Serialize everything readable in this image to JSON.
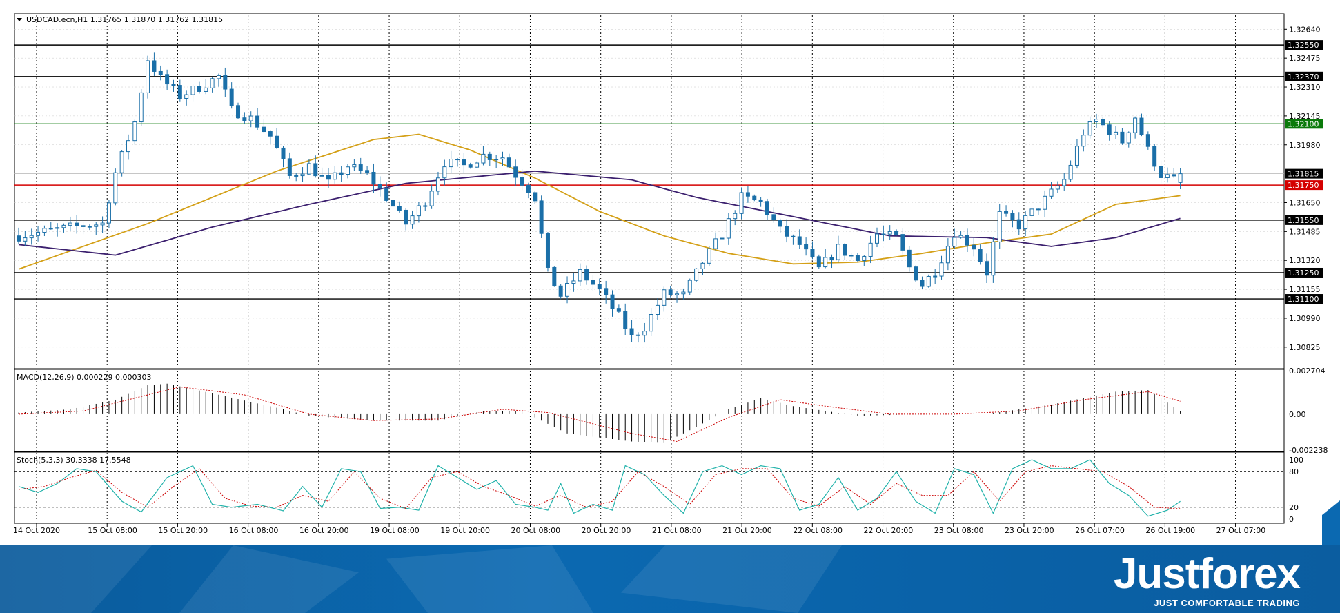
{
  "header": {
    "menu_arrow": "triangle-down-icon",
    "title": "USDCAD.ecn,H1  1.31765 1.31870 1.31762 1.31815"
  },
  "colors": {
    "bull": "#ffffff",
    "bear": "#1a6fa8",
    "candle_outline": "#1a6fa8",
    "ma_fast": "#d4a017",
    "ma_slow": "#3b1f6e",
    "grid": "#000000",
    "support_line": "#000000",
    "green_line": "#0a7a0a",
    "red_line": "#d40000",
    "macd_signal": "#cc0000",
    "stoch_main": "#20b2aa",
    "stoch_signal": "#cc0000"
  },
  "chart_data": [
    {
      "type": "candlestick",
      "symbol": "USDCAD.ecn",
      "timeframe": "H1",
      "ohlc_last": {
        "open": 1.31765,
        "high": 1.3187,
        "low": 1.31762,
        "close": 1.31815
      },
      "ylim": [
        1.3071,
        1.3272
      ],
      "price_ticks": [
        "1.32640",
        "1.32475",
        "1.32310",
        "1.32145",
        "1.31980",
        "1.31650",
        "1.31485",
        "1.31320",
        "1.31155",
        "1.30990",
        "1.30825"
      ],
      "levels": [
        {
          "label": "1.32550",
          "value": 1.3255,
          "color": "#000000"
        },
        {
          "label": "1.32370",
          "value": 1.3237,
          "color": "#000000"
        },
        {
          "label": "1.32100",
          "value": 1.321,
          "color": "#0a7a0a"
        },
        {
          "label": "1.31750",
          "value": 1.3175,
          "color": "#d40000"
        },
        {
          "label": "1.31550",
          "value": 1.3155,
          "color": "#000000"
        },
        {
          "label": "1.31250",
          "value": 1.3125,
          "color": "#000000"
        },
        {
          "label": "1.31100",
          "value": 1.311,
          "color": "#000000"
        }
      ],
      "current_price_label": "1.31815",
      "current_price": 1.31815,
      "x_ticks": [
        "14 Oct 2020",
        "15 Oct 08:00",
        "15 Oct 20:00",
        "16 Oct 08:00",
        "16 Oct 20:00",
        "19 Oct 08:00",
        "19 Oct 20:00",
        "20 Oct 08:00",
        "20 Oct 20:00",
        "21 Oct 08:00",
        "21 Oct 20:00",
        "22 Oct 08:00",
        "22 Oct 20:00",
        "23 Oct 08:00",
        "23 Oct 20:00",
        "26 Oct 07:00",
        "26 Oct 19:00",
        "27 Oct 07:00"
      ],
      "candle_count": 200,
      "close_anchors": [
        [
          0,
          1.3146
        ],
        [
          10,
          1.3152
        ],
        [
          13,
          1.3153
        ],
        [
          15,
          1.3182
        ],
        [
          18,
          1.3211
        ],
        [
          20,
          1.3247
        ],
        [
          22,
          1.3236
        ],
        [
          25,
          1.3226
        ],
        [
          28,
          1.3231
        ],
        [
          31,
          1.3237
        ],
        [
          33,
          1.3218
        ],
        [
          36,
          1.3213
        ],
        [
          39,
          1.3203
        ],
        [
          42,
          1.318
        ],
        [
          45,
          1.3186
        ],
        [
          48,
          1.3176
        ],
        [
          51,
          1.3186
        ],
        [
          54,
          1.3181
        ],
        [
          57,
          1.3168
        ],
        [
          60,
          1.3153
        ],
        [
          63,
          1.3166
        ],
        [
          66,
          1.3188
        ],
        [
          69,
          1.3186
        ],
        [
          72,
          1.3192
        ],
        [
          75,
          1.3191
        ],
        [
          77,
          1.3181
        ],
        [
          79,
          1.3173
        ],
        [
          80,
          1.3168
        ],
        [
          82,
          1.3125
        ],
        [
          84,
          1.3112
        ],
        [
          87,
          1.3125
        ],
        [
          90,
          1.3115
        ],
        [
          93,
          1.31
        ],
        [
          95,
          1.3088
        ],
        [
          97,
          1.3094
        ],
        [
          100,
          1.3113
        ],
        [
          103,
          1.3112
        ],
        [
          106,
          1.3131
        ],
        [
          109,
          1.3147
        ],
        [
          112,
          1.3168
        ],
        [
          115,
          1.3165
        ],
        [
          118,
          1.3149
        ],
        [
          121,
          1.3141
        ],
        [
          124,
          1.3127
        ],
        [
          127,
          1.3139
        ],
        [
          130,
          1.3132
        ],
        [
          133,
          1.3147
        ],
        [
          136,
          1.3145
        ],
        [
          138,
          1.3128
        ],
        [
          140,
          1.3118
        ],
        [
          142,
          1.3126
        ],
        [
          145,
          1.3148
        ],
        [
          148,
          1.314
        ],
        [
          150,
          1.3125
        ],
        [
          152,
          1.3158
        ],
        [
          155,
          1.3152
        ],
        [
          158,
          1.3163
        ],
        [
          162,
          1.3178
        ],
        [
          165,
          1.3205
        ],
        [
          167,
          1.3212
        ],
        [
          169,
          1.3206
        ],
        [
          171,
          1.32
        ],
        [
          173,
          1.3214
        ],
        [
          175,
          1.3195
        ],
        [
          177,
          1.3181
        ],
        [
          179,
          1.3178
        ],
        [
          180,
          1.31815
        ]
      ],
      "ma_fast_anchors": [
        [
          0,
          1.3127
        ],
        [
          20,
          1.3153
        ],
        [
          40,
          1.3183
        ],
        [
          55,
          1.3201
        ],
        [
          62,
          1.3204
        ],
        [
          70,
          1.3195
        ],
        [
          80,
          1.3179
        ],
        [
          90,
          1.316
        ],
        [
          100,
          1.3146
        ],
        [
          110,
          1.3136
        ],
        [
          120,
          1.313
        ],
        [
          130,
          1.3131
        ],
        [
          140,
          1.3136
        ],
        [
          150,
          1.3142
        ],
        [
          160,
          1.3147
        ],
        [
          170,
          1.3164
        ],
        [
          180,
          1.3169
        ]
      ],
      "ma_slow_anchors": [
        [
          0,
          1.3141
        ],
        [
          15,
          1.3135
        ],
        [
          30,
          1.3151
        ],
        [
          45,
          1.3164
        ],
        [
          60,
          1.3176
        ],
        [
          80,
          1.3183
        ],
        [
          95,
          1.3178
        ],
        [
          105,
          1.3168
        ],
        [
          120,
          1.3157
        ],
        [
          135,
          1.3146
        ],
        [
          150,
          1.3145
        ],
        [
          160,
          1.314
        ],
        [
          170,
          1.3145
        ],
        [
          180,
          1.3156
        ]
      ]
    },
    {
      "type": "histogram",
      "indicator": "MACD",
      "title": "MACD(12,26,9) 0.000229 0.000303",
      "ylim": [
        -0.002238,
        0.002704
      ],
      "ticks": [
        "0.002704",
        "0.00",
        "-0.002238"
      ],
      "macd_anchors": [
        [
          0,
          0.0001
        ],
        [
          8,
          0.0003
        ],
        [
          15,
          0.0009
        ],
        [
          20,
          0.0018
        ],
        [
          23,
          0.0019
        ],
        [
          30,
          0.0013
        ],
        [
          40,
          0.0004
        ],
        [
          45,
          -0.0001
        ],
        [
          55,
          -0.0004
        ],
        [
          65,
          -0.0004
        ],
        [
          72,
          0.0002
        ],
        [
          78,
          0.0002
        ],
        [
          85,
          -0.0012
        ],
        [
          95,
          -0.0017
        ],
        [
          100,
          -0.0018
        ],
        [
          105,
          -0.0008
        ],
        [
          110,
          0.0003
        ],
        [
          115,
          0.001
        ],
        [
          120,
          0.0005
        ],
        [
          130,
          -0.0001
        ],
        [
          140,
          0.0
        ],
        [
          150,
          0.0
        ],
        [
          160,
          0.0006
        ],
        [
          170,
          0.0014
        ],
        [
          175,
          0.0015
        ],
        [
          180,
          0.0002
        ]
      ],
      "signal_anchors": [
        [
          0,
          0.0
        ],
        [
          10,
          0.0002
        ],
        [
          20,
          0.0012
        ],
        [
          25,
          0.0017
        ],
        [
          35,
          0.0012
        ],
        [
          45,
          0.0
        ],
        [
          55,
          -0.0004
        ],
        [
          65,
          -0.0003
        ],
        [
          75,
          0.0003
        ],
        [
          82,
          0.0001
        ],
        [
          95,
          -0.0012
        ],
        [
          102,
          -0.0017
        ],
        [
          110,
          -0.0002
        ],
        [
          118,
          0.0009
        ],
        [
          125,
          0.0005
        ],
        [
          135,
          0.0
        ],
        [
          145,
          0.0
        ],
        [
          155,
          0.0002
        ],
        [
          165,
          0.0009
        ],
        [
          175,
          0.0014
        ],
        [
          180,
          0.0008
        ]
      ]
    },
    {
      "type": "line",
      "indicator": "Stochastic",
      "title": "Stoch(5,3,3) 30.3338 17.5548",
      "ylim": [
        0,
        100
      ],
      "ticks": [
        "100",
        "80",
        "20",
        "0"
      ],
      "levels": [
        80,
        20
      ],
      "k_anchors": [
        [
          0,
          55
        ],
        [
          3,
          45
        ],
        [
          6,
          60
        ],
        [
          9,
          85
        ],
        [
          12,
          80
        ],
        [
          16,
          30
        ],
        [
          19,
          12
        ],
        [
          23,
          70
        ],
        [
          27,
          90
        ],
        [
          30,
          25
        ],
        [
          33,
          20
        ],
        [
          37,
          25
        ],
        [
          41,
          14
        ],
        [
          44,
          55
        ],
        [
          47,
          20
        ],
        [
          50,
          85
        ],
        [
          53,
          80
        ],
        [
          56,
          18
        ],
        [
          59,
          20
        ],
        [
          62,
          15
        ],
        [
          65,
          90
        ],
        [
          68,
          70
        ],
        [
          71,
          50
        ],
        [
          74,
          65
        ],
        [
          77,
          25
        ],
        [
          80,
          20
        ],
        [
          82,
          15
        ],
        [
          84,
          60
        ],
        [
          86,
          10
        ],
        [
          89,
          25
        ],
        [
          92,
          15
        ],
        [
          94,
          90
        ],
        [
          97,
          75
        ],
        [
          100,
          40
        ],
        [
          103,
          10
        ],
        [
          106,
          80
        ],
        [
          109,
          90
        ],
        [
          112,
          75
        ],
        [
          115,
          90
        ],
        [
          118,
          85
        ],
        [
          121,
          15
        ],
        [
          124,
          25
        ],
        [
          127,
          70
        ],
        [
          130,
          15
        ],
        [
          133,
          35
        ],
        [
          136,
          80
        ],
        [
          139,
          30
        ],
        [
          142,
          10
        ],
        [
          145,
          85
        ],
        [
          148,
          75
        ],
        [
          151,
          10
        ],
        [
          154,
          85
        ],
        [
          157,
          100
        ],
        [
          160,
          85
        ],
        [
          163,
          85
        ],
        [
          166,
          100
        ],
        [
          169,
          60
        ],
        [
          172,
          40
        ],
        [
          175,
          5
        ],
        [
          178,
          15
        ],
        [
          180,
          30
        ]
      ],
      "d_anchors": [
        [
          0,
          50
        ],
        [
          4,
          55
        ],
        [
          8,
          70
        ],
        [
          12,
          82
        ],
        [
          16,
          45
        ],
        [
          20,
          20
        ],
        [
          24,
          55
        ],
        [
          28,
          85
        ],
        [
          32,
          35
        ],
        [
          36,
          22
        ],
        [
          40,
          20
        ],
        [
          44,
          40
        ],
        [
          48,
          30
        ],
        [
          52,
          80
        ],
        [
          56,
          35
        ],
        [
          60,
          18
        ],
        [
          64,
          70
        ],
        [
          68,
          80
        ],
        [
          72,
          55
        ],
        [
          76,
          40
        ],
        [
          80,
          22
        ],
        [
          84,
          40
        ],
        [
          88,
          20
        ],
        [
          92,
          30
        ],
        [
          96,
          80
        ],
        [
          100,
          55
        ],
        [
          104,
          25
        ],
        [
          108,
          75
        ],
        [
          112,
          85
        ],
        [
          116,
          85
        ],
        [
          120,
          35
        ],
        [
          124,
          22
        ],
        [
          128,
          55
        ],
        [
          132,
          25
        ],
        [
          136,
          60
        ],
        [
          140,
          40
        ],
        [
          144,
          40
        ],
        [
          148,
          80
        ],
        [
          152,
          30
        ],
        [
          156,
          80
        ],
        [
          160,
          90
        ],
        [
          164,
          85
        ],
        [
          168,
          80
        ],
        [
          172,
          55
        ],
        [
          176,
          20
        ],
        [
          180,
          17.5
        ]
      ]
    }
  ],
  "logo": {
    "name": "Justforex",
    "tagline": "JUST COMFORTABLE TRADING"
  }
}
